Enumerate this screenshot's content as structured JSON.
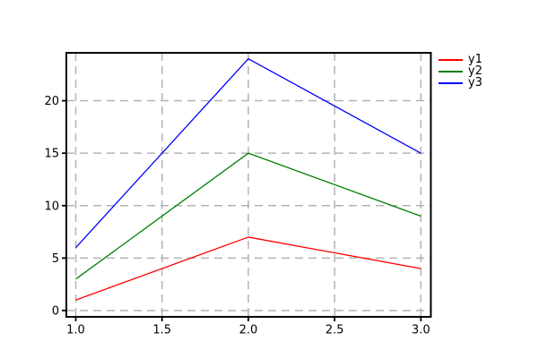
{
  "chart_data": {
    "type": "line",
    "title": "",
    "xlabel": "",
    "ylabel": "",
    "x": [
      1,
      2,
      3
    ],
    "series": [
      {
        "name": "y1",
        "color": "#ff0000",
        "values": [
          1,
          7,
          4
        ]
      },
      {
        "name": "y2",
        "color": "#008000",
        "values": [
          3,
          15,
          9
        ]
      },
      {
        "name": "y3",
        "color": "#0000ff",
        "values": [
          6,
          24,
          15
        ]
      }
    ],
    "xlim": [
      0.9454,
      3.0577
    ],
    "ylim": [
      -0.6,
      24.57
    ],
    "xticks": [
      1.0,
      1.5,
      2.0,
      2.5,
      3.0
    ],
    "xtick_labels": [
      "1.0",
      "1.5",
      "2.0",
      "2.5",
      "3.0"
    ],
    "yticks": [
      0,
      5,
      10,
      15,
      20
    ],
    "ytick_labels": [
      "0",
      "5",
      "10",
      "15",
      "20"
    ],
    "grid": true,
    "grid_style": "dashed",
    "grid_color": "#b3b3b3",
    "axis_color": "#000000",
    "background_color": "#ffffff",
    "legend": {
      "position": "outside-top-right",
      "frame": false,
      "entries": [
        "y1",
        "y2",
        "y3"
      ]
    }
  }
}
